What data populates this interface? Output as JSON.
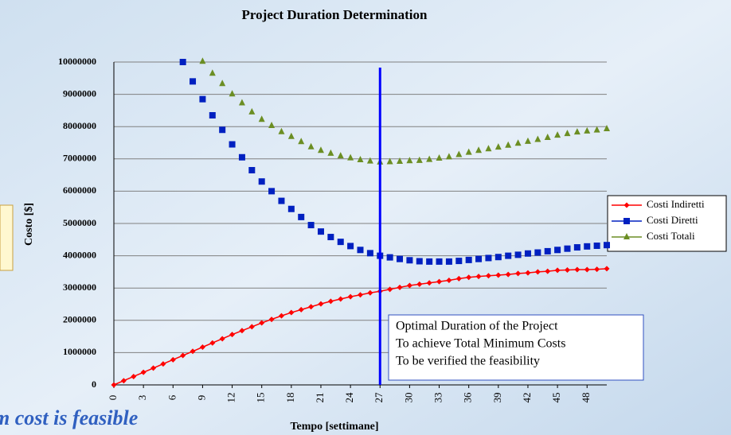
{
  "chart_data": {
    "type": "line",
    "title": "Project Duration Determination",
    "x_label": "Tempo [settimane]",
    "y_label": "Costo [$]",
    "x": [
      0,
      1,
      2,
      3,
      4,
      5,
      6,
      7,
      8,
      9,
      10,
      11,
      12,
      13,
      14,
      15,
      16,
      17,
      18,
      19,
      20,
      21,
      22,
      23,
      24,
      25,
      26,
      27,
      28,
      29,
      30,
      31,
      32,
      33,
      34,
      35,
      36,
      37,
      38,
      39,
      40,
      41,
      42,
      43,
      44,
      45,
      46,
      47,
      48,
      49,
      50
    ],
    "xlim": [
      0,
      50
    ],
    "xticks": [
      0,
      3,
      6,
      9,
      12,
      15,
      18,
      21,
      24,
      27,
      30,
      33,
      36,
      39,
      42,
      45,
      48
    ],
    "ylim": [
      0,
      10000000
    ],
    "yticks": [
      0,
      1000000,
      2000000,
      3000000,
      4000000,
      5000000,
      6000000,
      7000000,
      8000000,
      9000000,
      10000000
    ],
    "grid": true,
    "legend": "right",
    "series": [
      {
        "name": "Costi Indiretti",
        "color": "#ff0000",
        "marker": "diamond",
        "line": true,
        "values": [
          0,
          130000,
          260000,
          390000,
          520000,
          650000,
          780000,
          910000,
          1040000,
          1170000,
          1300000,
          1430000,
          1560000,
          1680000,
          1800000,
          1920000,
          2030000,
          2140000,
          2240000,
          2330000,
          2420000,
          2510000,
          2590000,
          2660000,
          2730000,
          2790000,
          2850000,
          2900000,
          2960000,
          3020000,
          3080000,
          3120000,
          3160000,
          3200000,
          3240000,
          3290000,
          3330000,
          3360000,
          3380000,
          3400000,
          3420000,
          3450000,
          3470000,
          3500000,
          3520000,
          3550000,
          3560000,
          3570000,
          3570000,
          3580000,
          3600000
        ]
      },
      {
        "name": "Costi Diretti",
        "color": "#0020c0",
        "marker": "square",
        "line": false,
        "values": [
          null,
          null,
          null,
          null,
          null,
          null,
          null,
          10000000,
          9400000,
          8850000,
          8350000,
          7900000,
          7450000,
          7050000,
          6650000,
          6300000,
          6000000,
          5700000,
          5450000,
          5200000,
          4950000,
          4750000,
          4580000,
          4430000,
          4300000,
          4180000,
          4080000,
          4000000,
          3950000,
          3900000,
          3860000,
          3830000,
          3820000,
          3820000,
          3820000,
          3840000,
          3870000,
          3900000,
          3930000,
          3960000,
          4000000,
          4030000,
          4070000,
          4100000,
          4140000,
          4180000,
          4220000,
          4260000,
          4290000,
          4310000,
          4330000
        ]
      },
      {
        "name": "Costi Totali",
        "color": "#6b8e23",
        "marker": "triangle",
        "line": false,
        "values": [
          null,
          null,
          null,
          null,
          null,
          null,
          null,
          null,
          null,
          10020000,
          9650000,
          9330000,
          9010000,
          8730000,
          8450000,
          8220000,
          8030000,
          7840000,
          7690000,
          7530000,
          7370000,
          7260000,
          7170000,
          7090000,
          7030000,
          6970000,
          6930000,
          6900000,
          6910000,
          6920000,
          6940000,
          6950000,
          6980000,
          7020000,
          7060000,
          7130000,
          7200000,
          7260000,
          7310000,
          7360000,
          7420000,
          7480000,
          7540000,
          7600000,
          7660000,
          7730000,
          7780000,
          7830000,
          7860000,
          7890000,
          7930000
        ]
      }
    ],
    "annotation": {
      "x": 27,
      "color": "#0000ff",
      "lines": [
        "Optimal Duration of the Project",
        "To achieve Total Minimum Costs",
        "To be verified the feasibility"
      ]
    },
    "background_text": "m cost is feasible"
  }
}
